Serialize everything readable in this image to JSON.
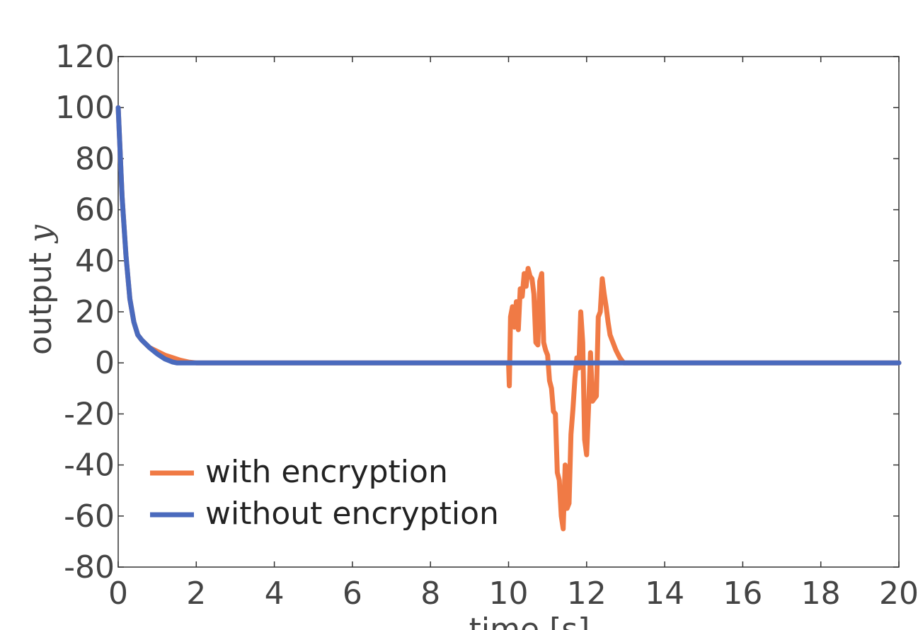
{
  "chart_data": {
    "type": "line",
    "xlabel": "time [s]",
    "ylabel_text": "output ",
    "ylabel_var": "y",
    "xlim": [
      0,
      20
    ],
    "ylim": [
      -80,
      120
    ],
    "xticks": [
      "0",
      "2",
      "4",
      "6",
      "8",
      "10",
      "12",
      "14",
      "16",
      "18",
      "20"
    ],
    "yticks": [
      "120",
      "100",
      "80",
      "60",
      "40",
      "20",
      "0",
      "-20",
      "-40",
      "-60",
      "-80"
    ],
    "grid": false,
    "legend_position": "lower-left",
    "series": [
      {
        "name": "with encryption",
        "color": "#f07a45",
        "x": [
          0,
          0.1,
          0.2,
          0.3,
          0.4,
          0.5,
          0.6,
          0.8,
          1.0,
          1.2,
          1.4,
          1.6,
          1.8,
          2,
          4,
          6,
          8,
          10,
          10.02,
          10.05,
          10.1,
          10.15,
          10.2,
          10.25,
          10.3,
          10.35,
          10.4,
          10.45,
          10.5,
          10.55,
          10.6,
          10.65,
          10.7,
          10.75,
          10.8,
          10.85,
          10.9,
          10.95,
          11.0,
          11.05,
          11.1,
          11.15,
          11.2,
          11.25,
          11.3,
          11.35,
          11.4,
          11.45,
          11.5,
          11.55,
          11.6,
          11.65,
          11.7,
          11.75,
          11.8,
          11.85,
          11.9,
          11.95,
          12.0,
          12.05,
          12.1,
          12.15,
          12.2,
          12.25,
          12.3,
          12.35,
          12.4,
          12.45,
          12.5,
          12.55,
          12.6,
          12.65,
          12.7,
          12.75,
          12.8,
          12.85,
          12.9,
          12.95,
          13.0,
          13.1,
          13.2,
          13.4,
          13.6,
          13.8,
          14.0,
          14.2,
          14.4,
          15,
          16,
          18,
          20
        ],
        "y": [
          100,
          65,
          42,
          25,
          16,
          11,
          9,
          6,
          4.5,
          3,
          2,
          1,
          0.3,
          0,
          0,
          0,
          0,
          0,
          -9,
          18,
          22,
          14,
          24,
          13,
          29,
          26,
          35,
          30,
          37,
          34,
          33,
          27,
          8,
          7,
          32,
          35,
          8,
          5,
          3,
          -7,
          -10,
          -19,
          -20,
          -43,
          -46,
          -60,
          -65,
          -40,
          -57,
          -55,
          -28,
          -18,
          -6,
          2,
          -2,
          20,
          8,
          -30,
          -36,
          -17,
          4,
          -15,
          -14,
          -13,
          18,
          20,
          33,
          27,
          22,
          16,
          11,
          9,
          7,
          5,
          3.5,
          2,
          1,
          0,
          0,
          0,
          0,
          0,
          0,
          0,
          0,
          0,
          0,
          0,
          0,
          0,
          0
        ],
        "y_fixup": true
      },
      {
        "name": "without encryption",
        "color": "#4a6abd",
        "x": [
          0,
          0.1,
          0.2,
          0.3,
          0.4,
          0.5,
          0.6,
          0.8,
          1.0,
          1.2,
          1.4,
          1.5,
          2,
          4,
          6,
          8,
          10,
          12,
          14,
          16,
          18,
          20
        ],
        "y": [
          100,
          65,
          42,
          25,
          16,
          11,
          9,
          6,
          3.5,
          1.5,
          0.3,
          0,
          0,
          0,
          0,
          0,
          0,
          0,
          0,
          0,
          0,
          0
        ]
      }
    ]
  }
}
